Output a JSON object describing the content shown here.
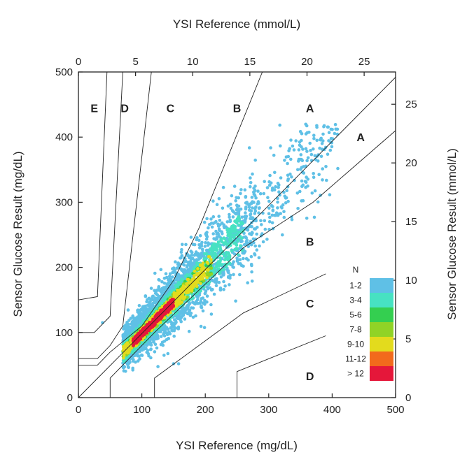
{
  "chart_data": {
    "type": "scatter",
    "title": "",
    "xlabel": "YSI Reference (mg/dL)",
    "ylabel": "Sensor Glucose Result (mg/dL)",
    "x2label": "YSI Reference (mmol/L)",
    "y2label": "Sensor Glucose Result (mmol/L)",
    "xlim": [
      0,
      500
    ],
    "ylim": [
      0,
      500
    ],
    "x_ticks": [
      "0",
      "100",
      "200",
      "300",
      "400",
      "500"
    ],
    "y_ticks": [
      "0",
      "100",
      "200",
      "300",
      "400",
      "500"
    ],
    "x2lim": [
      0,
      27.75
    ],
    "y2lim": [
      0,
      27.75
    ],
    "x2_ticks": [
      "0",
      "5",
      "10",
      "15",
      "20",
      "25"
    ],
    "y2_ticks": [
      "0",
      "5",
      "10",
      "15",
      "20",
      "25"
    ],
    "grid": false,
    "zone_labels": [
      {
        "label": "E",
        "x": 25,
        "y": 445
      },
      {
        "label": "D",
        "x": 73,
        "y": 445
      },
      {
        "label": "C",
        "x": 145,
        "y": 445
      },
      {
        "label": "B",
        "x": 250,
        "y": 445
      },
      {
        "label": "A",
        "x": 365,
        "y": 445
      },
      {
        "label": "A",
        "x": 445,
        "y": 400
      },
      {
        "label": "B",
        "x": 365,
        "y": 240
      },
      {
        "label": "C",
        "x": 365,
        "y": 145
      },
      {
        "label": "D",
        "x": 365,
        "y": 33
      }
    ],
    "zone_boundaries": [
      [
        [
          0,
          150
        ],
        [
          30,
          155
        ],
        [
          45,
          500
        ]
      ],
      [
        [
          0,
          100
        ],
        [
          25,
          100
        ],
        [
          50,
          125
        ],
        [
          70,
          500
        ]
      ],
      [
        [
          0,
          60
        ],
        [
          30,
          60
        ],
        [
          50,
          80
        ],
        [
          70,
          110
        ],
        [
          115,
          500
        ]
      ],
      [
        [
          0,
          50
        ],
        [
          30,
          50
        ],
        [
          50,
          70
        ],
        [
          100,
          110
        ],
        [
          150,
          180
        ],
        [
          190,
          260
        ],
        [
          240,
          380
        ],
        [
          290,
          500
        ]
      ],
      [
        [
          0,
          0
        ],
        [
          500,
          492
        ]
      ],
      [
        [
          50,
          0
        ],
        [
          50,
          30
        ],
        [
          70,
          50
        ],
        [
          120,
          100
        ],
        [
          260,
          230
        ],
        [
          370,
          300
        ],
        [
          500,
          410
        ]
      ],
      [
        [
          120,
          0
        ],
        [
          120,
          30
        ],
        [
          260,
          130
        ],
        [
          390,
          190
        ]
      ],
      [
        [
          250,
          0
        ],
        [
          250,
          40
        ],
        [
          390,
          95
        ]
      ]
    ],
    "density_legend": {
      "title": "N",
      "bins": [
        {
          "label": "1-2",
          "color": "#5fc0e6"
        },
        {
          "label": "3-4",
          "color": "#47e2c2"
        },
        {
          "label": "5-6",
          "color": "#34cf50"
        },
        {
          "label": "7-8",
          "color": "#90d326"
        },
        {
          "label": "9-10",
          "color": "#e3db1d"
        },
        {
          "label": "11-12",
          "color": "#f26a1c"
        },
        {
          "label": "> 12",
          "color": "#e5173a"
        }
      ]
    },
    "point_cloud": {
      "trend_slope": 0.98,
      "x_range": [
        40,
        410
      ],
      "y_range": [
        40,
        420
      ]
    }
  }
}
